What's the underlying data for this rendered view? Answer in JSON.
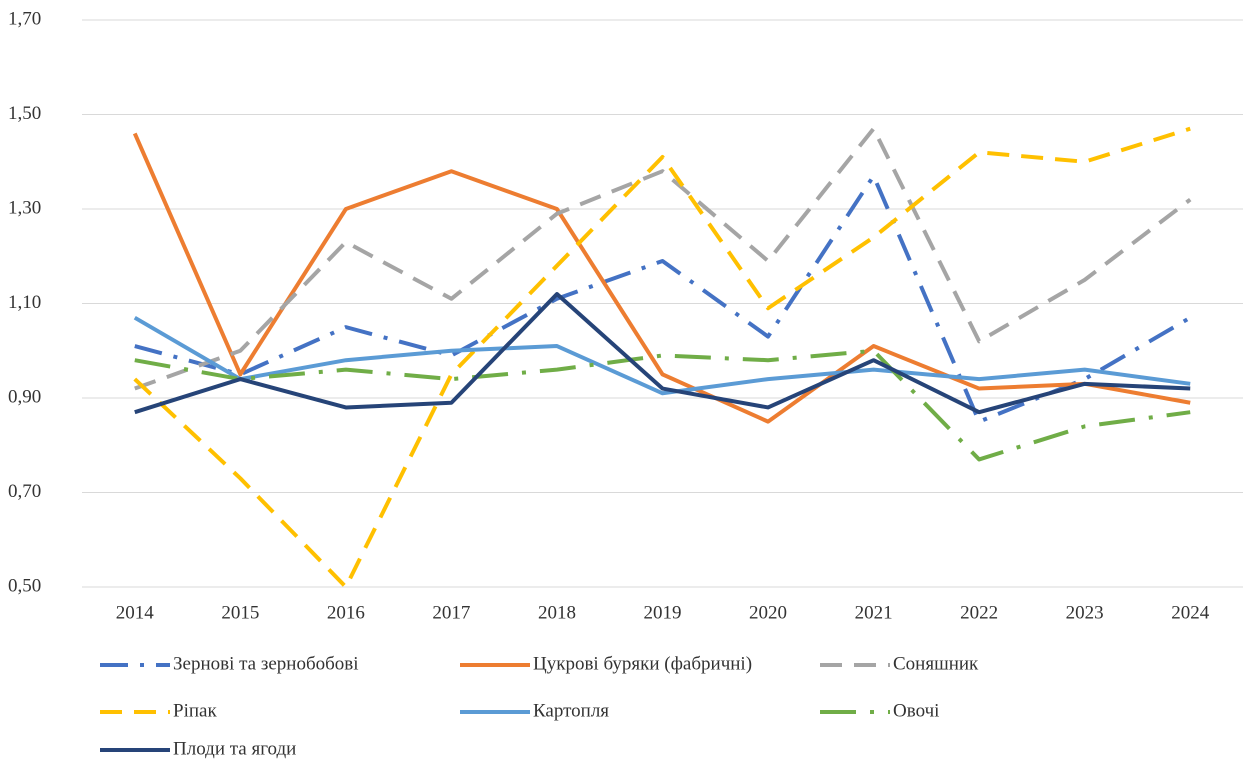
{
  "chart_data": {
    "type": "line",
    "categories": [
      "2014",
      "2015",
      "2016",
      "2017",
      "2018",
      "2019",
      "2020",
      "2021",
      "2022",
      "2023",
      "2024"
    ],
    "ylim": [
      0.5,
      1.7
    ],
    "yticks": [
      {
        "value": 0.5,
        "label": "0,50"
      },
      {
        "value": 0.7,
        "label": "0,70"
      },
      {
        "value": 0.9,
        "label": "0,90"
      },
      {
        "value": 1.1,
        "label": "1,10"
      },
      {
        "value": 1.3,
        "label": "1,30"
      },
      {
        "value": 1.5,
        "label": "1,50"
      },
      {
        "value": 1.7,
        "label": "1,70"
      }
    ],
    "grid": true,
    "legend": "bottom",
    "series": [
      {
        "name": "Зернові та зернобобові",
        "color": "#4472c4",
        "style": "dash-dot",
        "values": [
          1.01,
          0.95,
          1.05,
          0.99,
          1.11,
          1.19,
          1.03,
          1.37,
          0.85,
          0.94,
          1.07
        ]
      },
      {
        "name": "Цукрові буряки (фабричні)",
        "color": "#ed7d31",
        "style": "solid",
        "values": [
          1.46,
          0.95,
          1.3,
          1.38,
          1.3,
          0.95,
          0.85,
          1.01,
          0.92,
          0.93,
          0.89
        ]
      },
      {
        "name": "Соняшник",
        "color": "#a5a5a5",
        "style": "dash",
        "values": [
          0.92,
          1.0,
          1.23,
          1.11,
          1.29,
          1.38,
          1.19,
          1.47,
          1.02,
          1.15,
          1.32
        ]
      },
      {
        "name": "Ріпак",
        "color": "#ffc000",
        "style": "dash",
        "values": [
          0.94,
          0.73,
          0.5,
          0.95,
          1.18,
          1.41,
          1.09,
          1.24,
          1.42,
          1.4,
          1.47
        ]
      },
      {
        "name": "Картопля",
        "color": "#5b9bd5",
        "style": "solid",
        "values": [
          1.07,
          0.94,
          0.98,
          1.0,
          1.01,
          0.91,
          0.94,
          0.96,
          0.94,
          0.96,
          0.93
        ]
      },
      {
        "name": "Овочі",
        "color": "#70ad47",
        "style": "long-dash-dot",
        "values": [
          0.98,
          0.94,
          0.96,
          0.94,
          0.96,
          0.99,
          0.98,
          1.0,
          0.77,
          0.84,
          0.87
        ]
      },
      {
        "name": "Плоди та ягоди",
        "color": "#264478",
        "style": "solid",
        "values": [
          0.87,
          0.94,
          0.88,
          0.89,
          1.12,
          0.92,
          0.88,
          0.98,
          0.87,
          0.93,
          0.92
        ]
      }
    ]
  }
}
